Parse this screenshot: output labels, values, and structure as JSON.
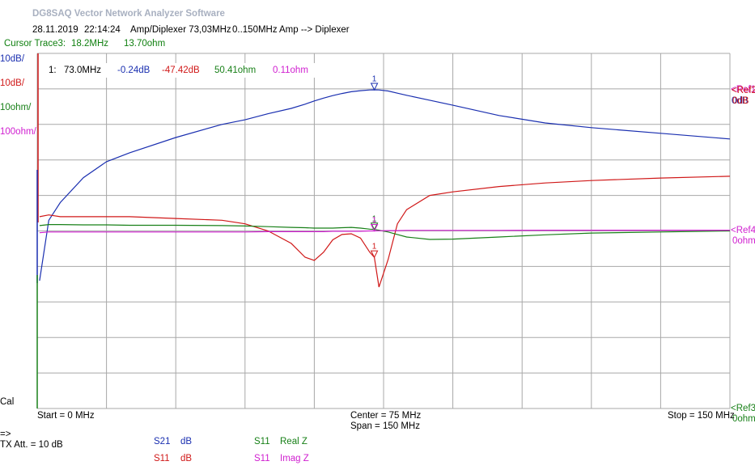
{
  "header": {
    "title": "DG8SAQ Vector Network Analyzer Software",
    "date": "28.11.2019",
    "time": "22:14:24",
    "file": "Amp/Diplexer 73,03MHz",
    "range": "0..150MHz",
    "path": "Amp  -->  Diplexer"
  },
  "cursor": {
    "label": "Cursor Trace3:",
    "freq": "18.2MHz",
    "value": "13.70ohm"
  },
  "scales": [
    "10dB/",
    "10dB/",
    "10ohm/",
    "100ohm/"
  ],
  "readout": {
    "marker": "1:",
    "freq": "73.0MHz",
    "values": [
      "-0.24dB",
      "-47.42dB",
      "50.41ohm",
      "0.11ohm"
    ]
  },
  "refs": [
    {
      "label": "<Ref1",
      "value": "0dB"
    },
    {
      "label": "<Ref2",
      "value": "0dB"
    },
    {
      "label": "<Ref4",
      "value": "0ohm"
    },
    {
      "label": "<Ref3",
      "value": "0ohm"
    }
  ],
  "cal": "Cal",
  "footer": {
    "start": "Start = 0 MHz",
    "center": "Center = 75 MHz",
    "span": "Span = 150 MHz",
    "stop": "Stop = 150 MHz",
    "arrow": "=>",
    "tx": "TX Att.  = 10 dB"
  },
  "legend": [
    {
      "param": "S21",
      "format": "dB"
    },
    {
      "param": "S11",
      "format": "dB"
    },
    {
      "param": "S11",
      "format": "Real Z"
    },
    {
      "param": "S11",
      "format": "Imag Z"
    }
  ],
  "plot": {
    "xlim": [
      0,
      150
    ],
    "marker_label": "1",
    "marker_x": 73,
    "x": [
      0.5,
      2.5,
      5,
      10,
      15,
      20,
      30,
      40,
      45,
      50,
      55,
      58,
      60,
      62,
      64,
      66,
      68,
      70,
      72,
      73,
      74,
      76,
      78,
      80,
      85,
      90,
      100,
      110,
      120,
      135,
      150
    ],
    "traces": [
      {
        "color": "#1a2fb0",
        "ylim": [
          -90,
          10
        ],
        "values": [
          -54,
          -37,
          -32,
          -25,
          -20.5,
          -18,
          -13.7,
          -10,
          -8.7,
          -7,
          -5.5,
          -4.3,
          -3.4,
          -2.6,
          -1.9,
          -1.3,
          -0.8,
          -0.5,
          -0.3,
          -0.24,
          -0.3,
          -0.6,
          -1.2,
          -1.8,
          -3.2,
          -4.6,
          -7.5,
          -9.6,
          -10.9,
          -12.5,
          -14.1
        ]
      },
      {
        "color": "#d01818",
        "ylim": [
          -90,
          10
        ],
        "values": [
          -36,
          -35.5,
          -36,
          -36,
          -36,
          -36,
          -36.5,
          -37,
          -38,
          -40,
          -43.5,
          -47.4,
          -48.3,
          -46,
          -42.5,
          -41,
          -40.8,
          -42,
          -46,
          -47.42,
          -55.8,
          -48,
          -38,
          -34,
          -30,
          -29,
          -27.5,
          -26.5,
          -25.8,
          -25.1,
          -24.6
        ]
      },
      {
        "color": "#188018",
        "ylim": [
          0,
          100
        ],
        "values": [
          51.5,
          51.8,
          51.8,
          51.7,
          51.7,
          51.6,
          51.6,
          51.5,
          51.4,
          51.2,
          51.0,
          50.9,
          50.8,
          50.8,
          50.8,
          50.9,
          51.0,
          50.8,
          50.5,
          50.41,
          50.2,
          49.7,
          49.0,
          48.3,
          47.6,
          47.7,
          48.3,
          48.9,
          49.4,
          49.7,
          50.0
        ]
      },
      {
        "color": "#d020d0",
        "ylim": [
          -500,
          500
        ],
        "values": [
          -5,
          -3,
          -3,
          -3,
          -3,
          -3,
          -3,
          -3,
          -3,
          -2,
          -2,
          -2,
          -2,
          -2,
          -1,
          -1,
          -1,
          -1,
          0,
          0.11,
          0.5,
          1,
          1,
          1.5,
          1.5,
          1.5,
          1.5,
          2,
          2,
          2,
          2
        ]
      }
    ]
  }
}
